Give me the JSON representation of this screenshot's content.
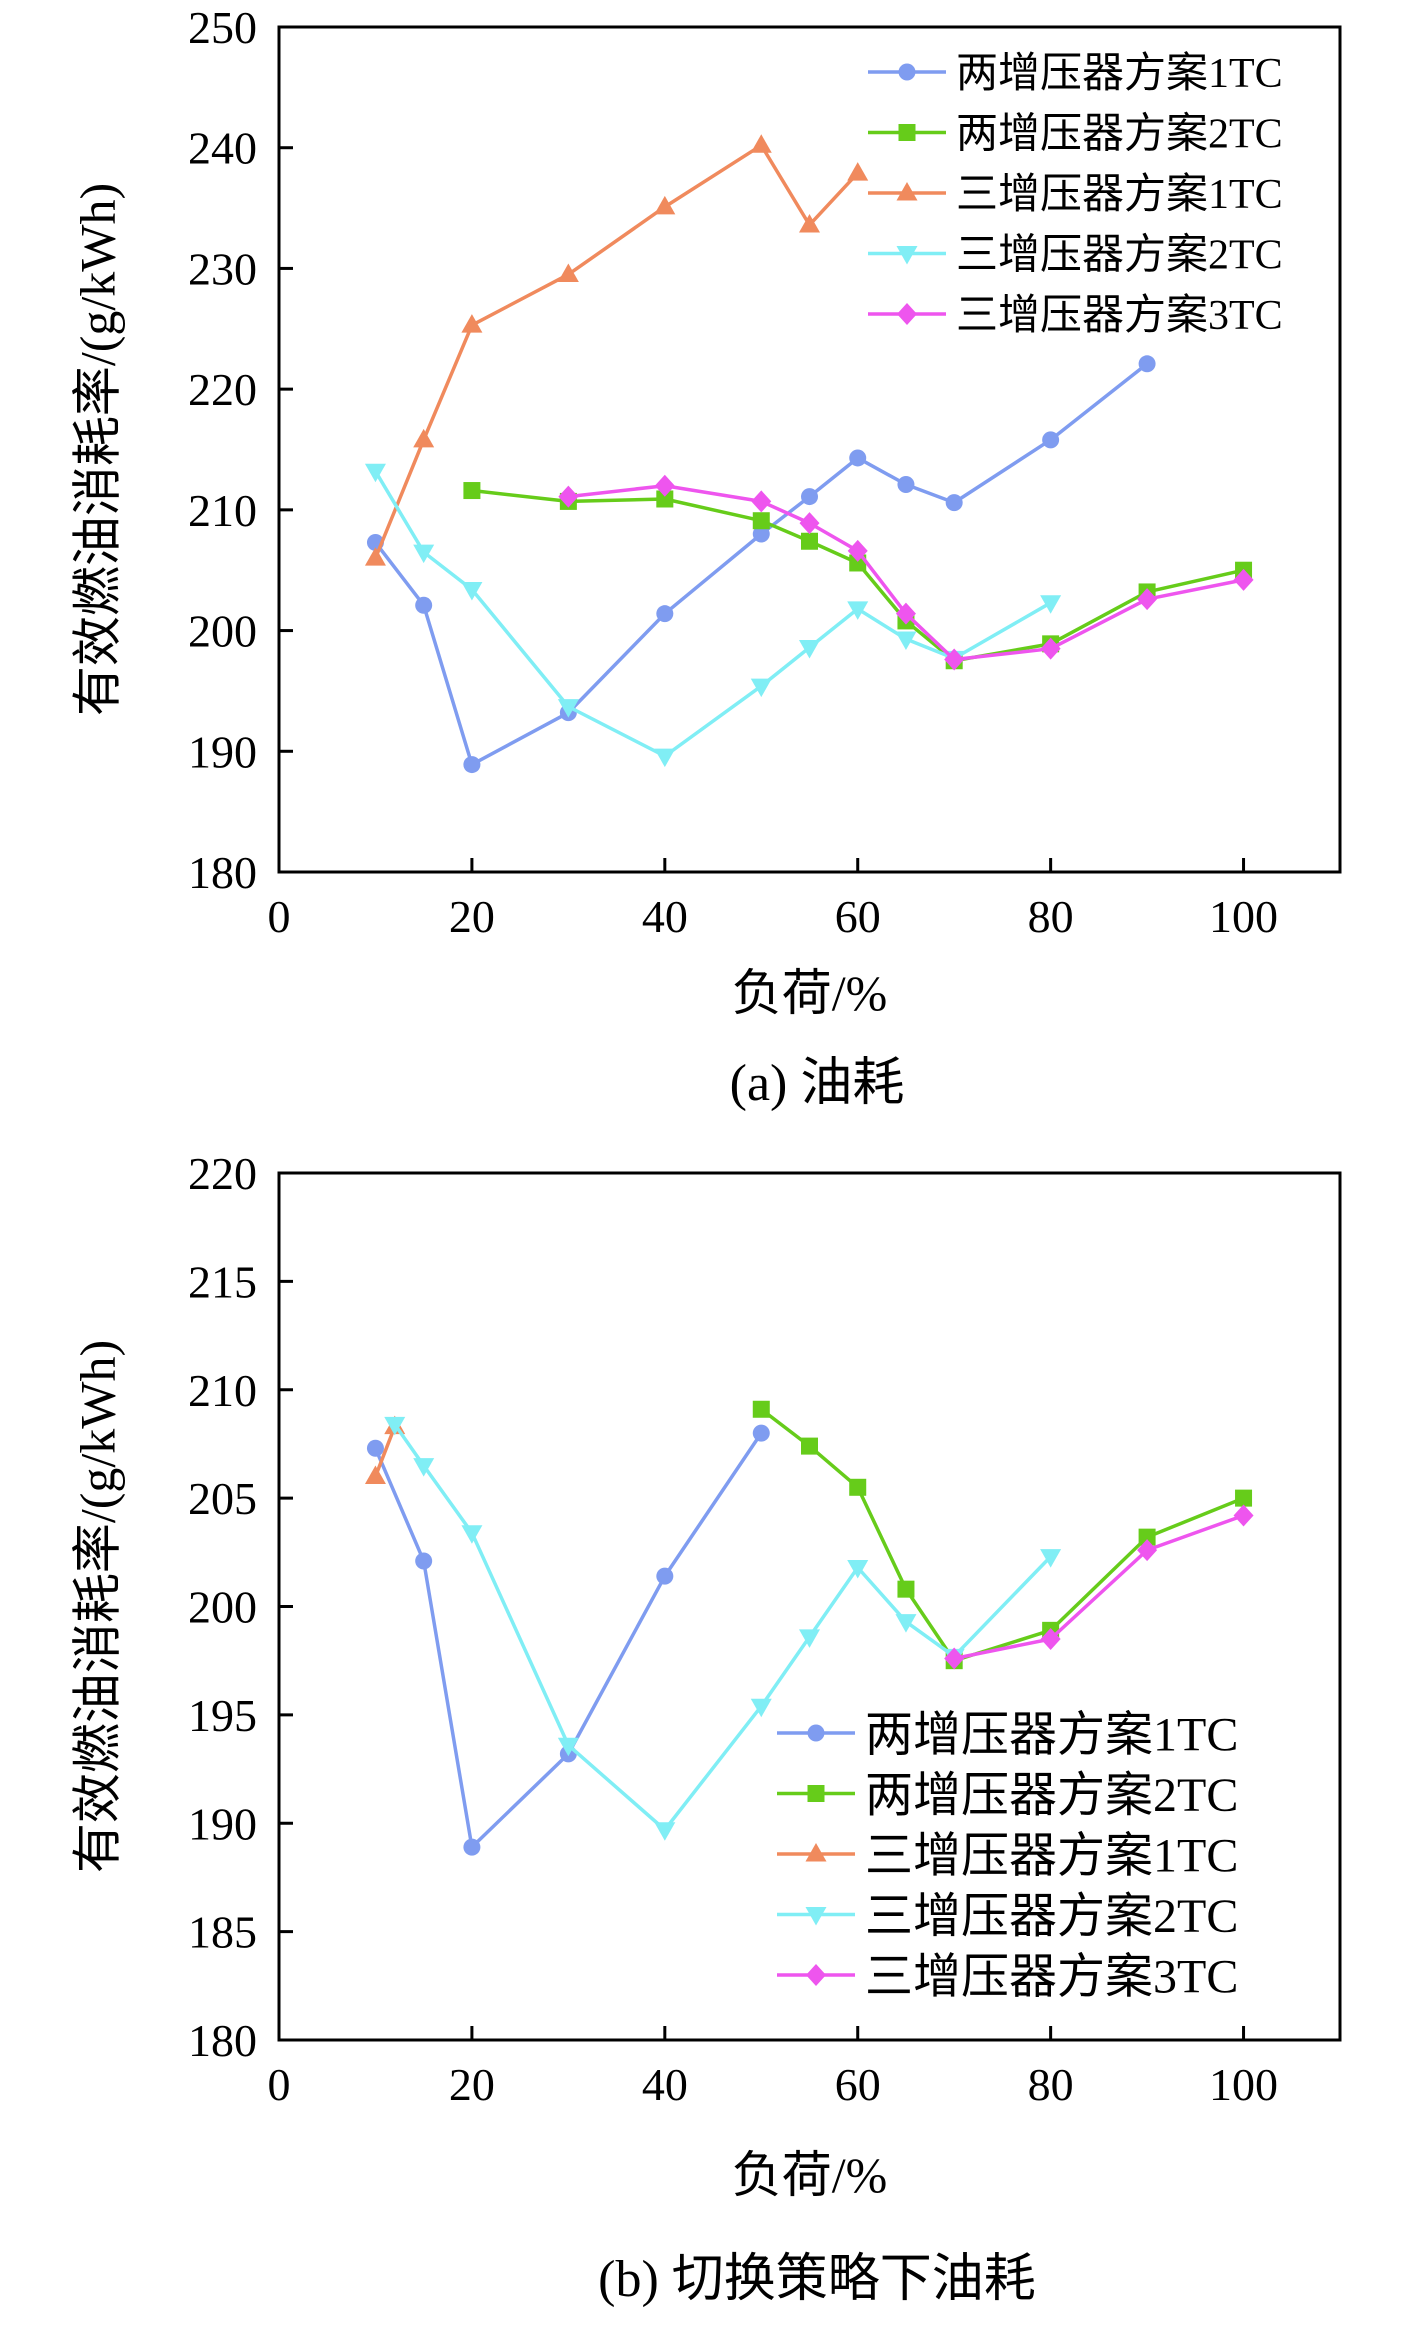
{
  "chart_data": [
    {
      "type": "line",
      "caption": "(a) 油耗",
      "xlabel": "负荷/%",
      "ylabel": "有效燃油消耗率/(g/kWh)",
      "xlim": [
        0,
        110
      ],
      "ylim": [
        180,
        250
      ],
      "xticks": [
        0,
        20,
        40,
        60,
        80,
        100
      ],
      "yticks": [
        180,
        190,
        200,
        210,
        220,
        230,
        240,
        250
      ],
      "xtick_labels": [
        "0",
        "20",
        "40",
        "60",
        "80",
        "100"
      ],
      "ytick_labels": [
        "180",
        "190",
        "200",
        "210",
        "220",
        "230",
        "240",
        "250"
      ],
      "grid": false,
      "legend_position": "top-right",
      "series": [
        {
          "name": "两增压器方案1TC",
          "color": "#7f9cf0",
          "marker": "circle",
          "x": [
            10,
            15,
            20,
            30,
            40,
            50,
            55,
            60,
            65,
            70,
            80,
            90
          ],
          "y": [
            207.3,
            202.1,
            188.9,
            193.2,
            201.4,
            208.0,
            211.1,
            214.3,
            212.1,
            210.6,
            215.8,
            222.1
          ]
        },
        {
          "name": "两增压器方案2TC",
          "color": "#66cc1a",
          "marker": "square",
          "x": [
            20,
            30,
            40,
            50,
            55,
            60,
            65,
            70,
            80,
            90,
            100
          ],
          "y": [
            211.6,
            210.7,
            210.9,
            209.1,
            207.4,
            205.6,
            200.8,
            197.5,
            198.9,
            203.2,
            205.0
          ]
        },
        {
          "name": "三增压器方案1TC",
          "color": "#f08a5d",
          "marker": "triangle-up",
          "x": [
            10,
            15,
            20,
            30,
            40,
            50,
            55,
            60
          ],
          "y": [
            206.0,
            215.8,
            225.3,
            229.5,
            235.1,
            240.2,
            233.6,
            237.9
          ]
        },
        {
          "name": "三增压器方案2TC",
          "color": "#80eef5",
          "marker": "triangle-down",
          "x": [
            10,
            15,
            20,
            30,
            40,
            50,
            55,
            60,
            65,
            70,
            80
          ],
          "y": [
            213.2,
            206.5,
            203.4,
            193.7,
            189.6,
            195.4,
            198.6,
            201.8,
            199.3,
            197.7,
            202.3
          ]
        },
        {
          "name": "三增压器方案3TC",
          "color": "#ee55ee",
          "marker": "diamond",
          "x": [
            30,
            40,
            50,
            55,
            60,
            65,
            70,
            80,
            90,
            100
          ],
          "y": [
            211.1,
            212.0,
            210.7,
            208.9,
            206.6,
            201.4,
            197.6,
            198.5,
            202.6,
            204.2
          ]
        }
      ]
    },
    {
      "type": "line",
      "caption": "(b) 切换策略下油耗",
      "xlabel": "负荷/%",
      "ylabel": "有效燃油消耗率/(g/kWh)",
      "xlim": [
        0,
        110
      ],
      "ylim": [
        180,
        220
      ],
      "xticks": [
        0,
        20,
        40,
        60,
        80,
        100
      ],
      "yticks": [
        180,
        185,
        190,
        195,
        200,
        205,
        210,
        215,
        220
      ],
      "xtick_labels": [
        "0",
        "20",
        "40",
        "60",
        "80",
        "100"
      ],
      "ytick_labels": [
        "180",
        "185",
        "190",
        "195",
        "200",
        "205",
        "210",
        "215",
        "220"
      ],
      "grid": false,
      "legend_position": "bottom-right",
      "series": [
        {
          "name": "两增压器方案1TC",
          "color": "#7f9cf0",
          "marker": "circle",
          "x": [
            10,
            15,
            20,
            30,
            40,
            50
          ],
          "y": [
            207.3,
            202.1,
            188.9,
            193.2,
            201.4,
            208.0
          ]
        },
        {
          "name": "两增压器方案2TC",
          "color": "#66cc1a",
          "marker": "square",
          "x": [
            50,
            55,
            60,
            65,
            70,
            80,
            90,
            100
          ],
          "y": [
            209.1,
            207.4,
            205.5,
            200.8,
            197.5,
            198.9,
            203.2,
            205.0
          ]
        },
        {
          "name": "三增压器方案1TC",
          "color": "#f08a5d",
          "marker": "triangle-up",
          "x": [
            10,
            12
          ],
          "y": [
            206.0,
            208.3
          ]
        },
        {
          "name": "三增压器方案2TC",
          "color": "#80eef5",
          "marker": "triangle-down",
          "x": [
            12,
            15,
            20,
            30,
            40,
            50,
            55,
            60,
            65,
            70,
            80
          ],
          "y": [
            208.4,
            206.5,
            203.4,
            193.6,
            189.7,
            195.4,
            198.6,
            201.8,
            199.3,
            197.7,
            202.3
          ]
        },
        {
          "name": "三增压器方案3TC",
          "color": "#ee55ee",
          "marker": "diamond",
          "x": [
            70,
            80,
            90,
            100
          ],
          "y": [
            197.6,
            198.5,
            202.6,
            204.2
          ]
        }
      ]
    }
  ]
}
